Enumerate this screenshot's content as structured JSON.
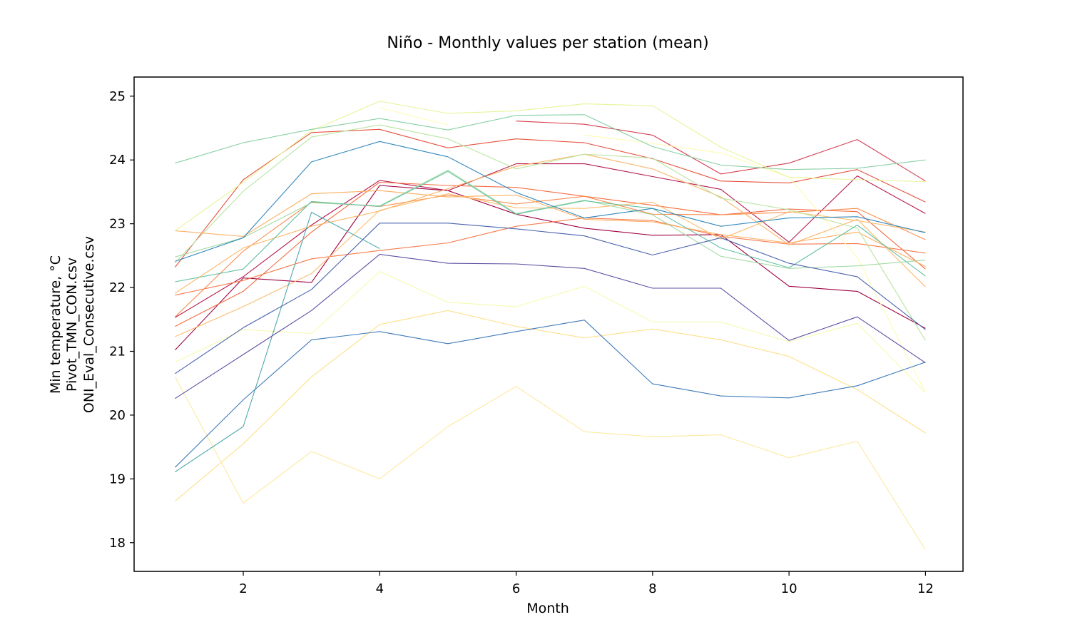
{
  "chart_data": {
    "type": "line",
    "title": "Niño - Monthly values per station (mean)",
    "xlabel": "Month",
    "ylabel": [
      "Min temperature, °C",
      "Pivot_TMN_CON.csv",
      "ONI_Eval_Consecutive.csv"
    ],
    "xlim": [
      0.4,
      12.55
    ],
    "ylim": [
      17.55,
      25.3
    ],
    "xticks": [
      2,
      4,
      6,
      8,
      10,
      12
    ],
    "yticks": [
      18,
      19,
      20,
      21,
      22,
      23,
      24,
      25
    ],
    "grid": false,
    "legend": "none",
    "x": [
      1,
      2,
      3,
      4,
      5,
      6,
      7,
      8,
      9,
      10,
      11,
      12
    ],
    "series": [
      {
        "color": "#9e0142",
        "values": [
          21.02,
          22.15,
          22.08,
          23.6,
          23.52,
          23.15,
          22.93,
          22.82,
          22.83,
          22.02,
          21.94,
          21.36
        ]
      },
      {
        "color": "#b51a4b",
        "values": [
          21.53,
          22.17,
          22.98,
          23.68,
          23.52,
          23.94,
          23.94,
          23.74,
          23.54,
          22.71,
          23.75,
          23.16
        ]
      },
      {
        "color": "#d53e4f",
        "values": [
          null,
          null,
          null,
          null,
          null,
          24.61,
          24.56,
          24.39,
          23.78,
          23.95,
          24.32,
          23.67
        ]
      },
      {
        "color": "#e5533f",
        "values": [
          22.32,
          23.69,
          24.43,
          24.48,
          24.19,
          24.33,
          24.27,
          24.02,
          23.67,
          23.64,
          23.85,
          23.34
        ]
      },
      {
        "color": "#f46d43",
        "values": [
          21.39,
          21.94,
          22.87,
          23.65,
          23.6,
          23.57,
          23.43,
          23.29,
          23.14,
          23.23,
          23.19,
          22.29
        ]
      },
      {
        "color": "#f67a4a",
        "values": [
          21.88,
          22.11,
          22.45,
          22.58,
          22.7,
          22.96,
          23.09,
          23.05,
          22.8,
          22.68,
          22.69,
          22.54
        ]
      },
      {
        "color": "#fa8c4e",
        "values": [
          21.54,
          22.57,
          23.34,
          23.27,
          23.45,
          23.31,
          23.43,
          23.15,
          23.14,
          23.18,
          23.24,
          22.75
        ]
      },
      {
        "color": "#fdae61",
        "values": [
          22.89,
          22.8,
          23.47,
          23.52,
          23.42,
          23.45,
          23.07,
          23.03,
          22.83,
          22.7,
          22.87,
          22.33
        ]
      },
      {
        "color": "#fdb567",
        "values": [
          21.91,
          22.62,
          22.96,
          23.2,
          23.55,
          23.9,
          24.09,
          23.86,
          23.42,
          22.67,
          23.07,
          22.01
        ]
      },
      {
        "color": "#febe6f",
        "values": [
          21.23,
          21.7,
          22.22,
          23.21,
          23.47,
          23.25,
          23.24,
          23.34,
          22.76,
          23.19,
          23.05,
          22.87
        ]
      },
      {
        "color": "#fee08b",
        "values": [
          18.65,
          19.55,
          20.6,
          21.42,
          21.64,
          21.39,
          21.21,
          21.35,
          21.18,
          20.92,
          20.4,
          19.72
        ]
      },
      {
        "color": "#fee9a0",
        "values": [
          20.6,
          18.62,
          19.43,
          19.0,
          19.82,
          20.45,
          19.74,
          19.66,
          19.69,
          19.33,
          19.59,
          17.89
        ]
      },
      {
        "color": "#fefbb4",
        "values": [
          null,
          null,
          null,
          24.82,
          24.55,
          null,
          24.39,
          24.26,
          24.11,
          23.73,
          22.47,
          20.35
        ]
      },
      {
        "color": "#f6fbb0",
        "values": [
          20.83,
          21.34,
          21.28,
          22.25,
          21.77,
          21.7,
          22.02,
          21.46,
          21.46,
          21.15,
          21.44,
          20.35
        ]
      },
      {
        "color": "#e6f598",
        "values": [
          22.89,
          23.65,
          24.46,
          24.92,
          24.73,
          24.77,
          24.88,
          24.85,
          24.2,
          23.73,
          23.69,
          23.66
        ]
      },
      {
        "color": "#b9e4a0",
        "values": [
          22.39,
          23.51,
          24.36,
          24.55,
          24.33,
          23.86,
          24.09,
          24.03,
          23.4,
          23.22,
          22.93,
          21.17
        ]
      },
      {
        "color": "#a4dba4",
        "values": [
          22.48,
          22.78,
          23.33,
          23.28,
          23.84,
          23.16,
          23.37,
          23.14,
          22.49,
          22.3,
          22.34,
          22.43
        ]
      },
      {
        "color": "#88d0a4",
        "values": [
          23.95,
          24.27,
          24.48,
          24.65,
          24.47,
          24.7,
          24.71,
          24.21,
          23.92,
          23.85,
          23.87,
          24.0
        ]
      },
      {
        "color": "#66c2a5",
        "values": [
          22.09,
          22.29,
          23.35,
          23.27,
          23.82,
          23.15,
          23.36,
          23.24,
          22.62,
          22.31,
          22.98,
          22.18
        ]
      },
      {
        "color": "#4fa8ac",
        "values": [
          19.11,
          19.82,
          23.18,
          22.61,
          null,
          null,
          null,
          null,
          null,
          null,
          null,
          null
        ]
      },
      {
        "color": "#3288bd",
        "values": [
          22.41,
          22.78,
          23.97,
          24.29,
          24.05,
          23.49,
          23.09,
          23.24,
          22.96,
          23.09,
          23.11,
          22.86
        ]
      },
      {
        "color": "#3f7ab8",
        "values": [
          19.18,
          20.24,
          21.18,
          21.31,
          21.12,
          21.31,
          21.49,
          20.49,
          20.3,
          20.27,
          20.46,
          20.83
        ]
      },
      {
        "color": "#4a63ad",
        "values": [
          20.65,
          21.37,
          21.97,
          23.01,
          23.01,
          22.92,
          22.81,
          22.51,
          22.78,
          22.38,
          22.17,
          21.34
        ]
      },
      {
        "color": "#5e4fa2",
        "values": [
          20.26,
          20.95,
          21.64,
          22.52,
          22.38,
          22.37,
          22.3,
          21.99,
          21.99,
          21.17,
          21.54,
          20.82
        ]
      }
    ]
  }
}
